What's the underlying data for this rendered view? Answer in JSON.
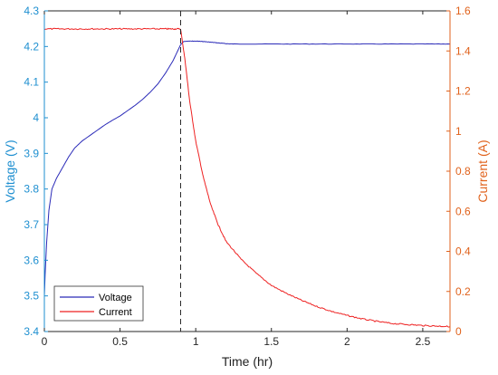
{
  "chart_data": {
    "type": "line",
    "xlabel": "Time (hr)",
    "ylabel_left": "Voltage (V)",
    "ylabel_right": "Current (A)",
    "xlim": [
      0,
      2.68
    ],
    "ylim_left": [
      3.4,
      4.3
    ],
    "ylim_right": [
      0,
      1.6
    ],
    "xticks": [
      "0",
      "0.5",
      "1",
      "1.5",
      "2",
      "2.5"
    ],
    "xtick_values": [
      0,
      0.5,
      1,
      1.5,
      2,
      2.5
    ],
    "yticks_left": [
      "3.4",
      "3.5",
      "3.6",
      "3.7",
      "3.8",
      "3.9",
      "4",
      "4.1",
      "4.2",
      "4.3"
    ],
    "ytick_values_left": [
      3.4,
      3.5,
      3.6,
      3.7,
      3.8,
      3.9,
      4.0,
      4.1,
      4.2,
      4.3
    ],
    "yticks_right": [
      "0",
      "0.2",
      "0.4",
      "0.6",
      "0.8",
      "1",
      "1.2",
      "1.4",
      "1.6"
    ],
    "ytick_values_right": [
      0,
      0.2,
      0.4,
      0.6,
      0.8,
      1.0,
      1.2,
      1.4,
      1.6
    ],
    "vline_x": 0.9,
    "legend_position": "bottom-left",
    "grid": false,
    "colors": {
      "voltage": "#2b2bb8",
      "current": "#ee2222",
      "left_axis": "#1e8fd0",
      "right_axis": "#e0621c",
      "vline": "#222222"
    },
    "series": [
      {
        "name": "Voltage",
        "axis": "left",
        "x": [
          0,
          0.005,
          0.015,
          0.03,
          0.05,
          0.08,
          0.12,
          0.16,
          0.2,
          0.25,
          0.3,
          0.35,
          0.4,
          0.45,
          0.5,
          0.55,
          0.6,
          0.65,
          0.7,
          0.75,
          0.8,
          0.85,
          0.9,
          0.92,
          0.95,
          1.0,
          1.05,
          1.1,
          1.15,
          1.2,
          1.25,
          1.5,
          1.75,
          2.0,
          2.25,
          2.5,
          2.68
        ],
        "values": [
          3.5,
          3.56,
          3.65,
          3.74,
          3.8,
          3.83,
          3.86,
          3.89,
          3.915,
          3.935,
          3.95,
          3.965,
          3.98,
          3.993,
          4.005,
          4.02,
          4.035,
          4.052,
          4.072,
          4.095,
          4.125,
          4.16,
          4.205,
          4.214,
          4.215,
          4.215,
          4.214,
          4.212,
          4.21,
          4.208,
          4.207,
          4.207,
          4.207,
          4.207,
          4.207,
          4.207,
          4.207
        ]
      },
      {
        "name": "Current",
        "axis": "right",
        "x": [
          0,
          0.1,
          0.2,
          0.3,
          0.4,
          0.5,
          0.6,
          0.7,
          0.8,
          0.85,
          0.9,
          0.93,
          0.96,
          1.0,
          1.05,
          1.1,
          1.15,
          1.2,
          1.3,
          1.4,
          1.5,
          1.6,
          1.7,
          1.8,
          1.9,
          2.0,
          2.1,
          2.2,
          2.3,
          2.4,
          2.5,
          2.6,
          2.68
        ],
        "values": [
          1.51,
          1.51,
          1.51,
          1.51,
          1.51,
          1.51,
          1.51,
          1.51,
          1.51,
          1.51,
          1.51,
          1.35,
          1.15,
          0.95,
          0.77,
          0.63,
          0.53,
          0.45,
          0.36,
          0.29,
          0.23,
          0.19,
          0.155,
          0.125,
          0.1,
          0.08,
          0.063,
          0.05,
          0.04,
          0.035,
          0.03,
          0.027,
          0.025
        ]
      }
    ]
  }
}
